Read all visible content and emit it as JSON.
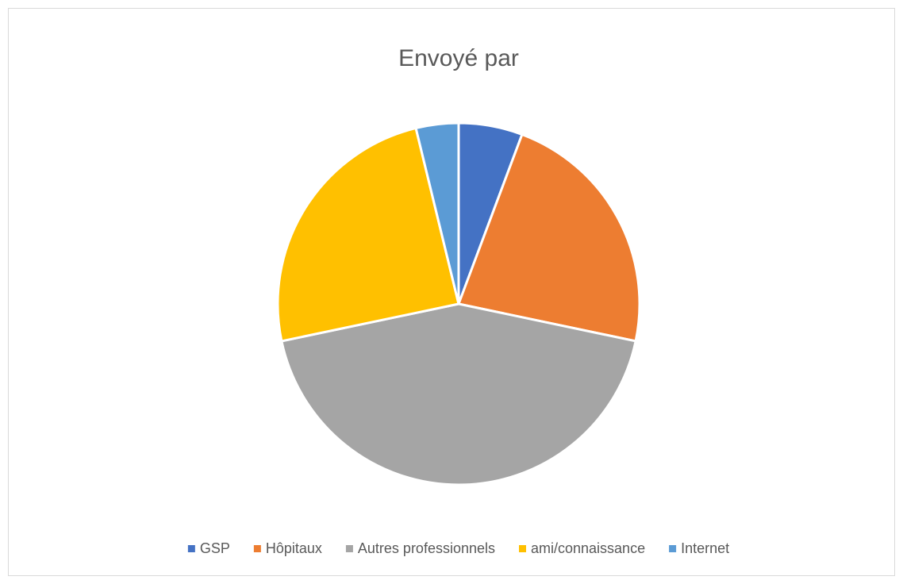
{
  "chart_data": {
    "type": "pie",
    "title": "Envoyé par",
    "categories": [
      "GSP",
      "Hôpitaux",
      "Autres professionnels",
      "ami/connaissance",
      "Internet"
    ],
    "values": [
      5.7,
      22.6,
      43.4,
      24.5,
      3.8
    ],
    "colors": [
      "#4472c4",
      "#ed7d31",
      "#a5a5a5",
      "#ffc000",
      "#5b9bd5"
    ],
    "legend": "bottom"
  }
}
